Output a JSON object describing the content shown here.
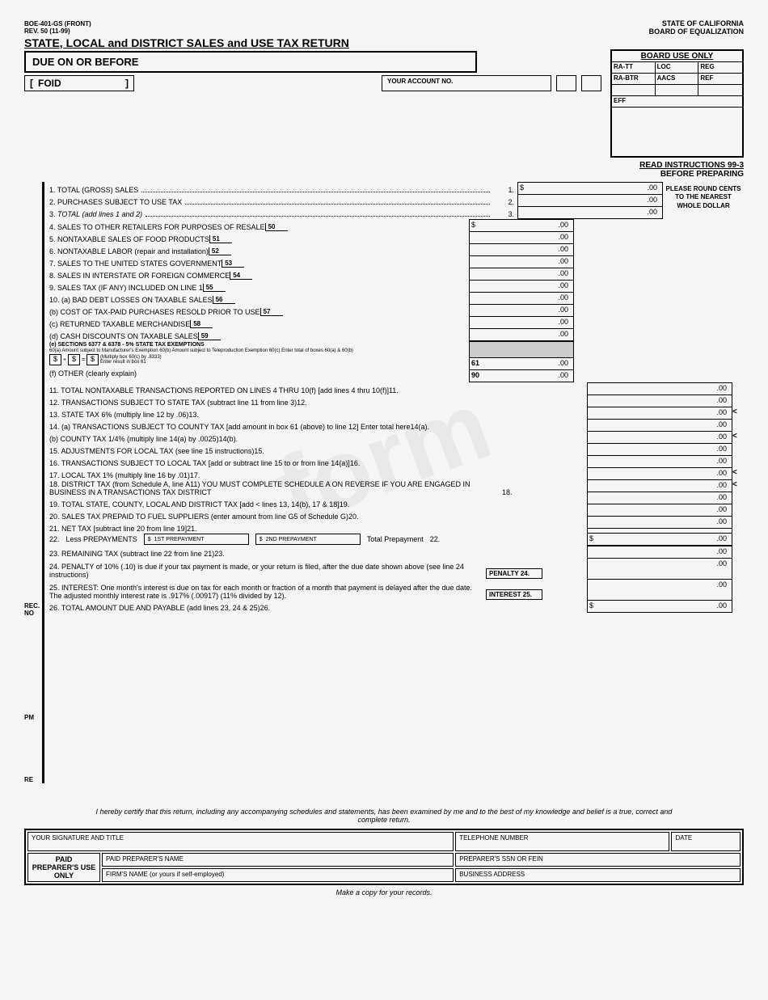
{
  "header": {
    "form_code": "BOE-401-GS (FRONT)",
    "rev": "REV. 50 (11-99)",
    "title": "STATE, LOCAL and DISTRICT SALES and USE TAX RETURN",
    "state": "STATE OF CALIFORNIA",
    "board": "BOARD OF EQUALIZATION",
    "due": "DUE ON OR BEFORE",
    "foid": "FOID",
    "acct": "YOUR ACCOUNT NO."
  },
  "board_use": {
    "title": "BOARD USE ONLY",
    "c1": "RA-TT",
    "c2": "LOC",
    "c3": "REG",
    "c4": "RA-BTR",
    "c5": "AACS",
    "c6": "REF",
    "eff": "EFF"
  },
  "instr": {
    "l1": "READ INSTRUCTIONS 99-3",
    "l2": "BEFORE PREPARING"
  },
  "round": "PLEASE ROUND CENTS TO THE NEAREST WHOLE DOLLAR",
  "side": {
    "rec": "REC.",
    "no": "NO",
    "pm": "PM",
    "re": "RE"
  },
  "lines_top": [
    {
      "n": "1.",
      "lbl": "TOTAL (GROSS) SALES",
      "end": "1.",
      "amt": ".00",
      "sym": "$"
    },
    {
      "n": "2.",
      "lbl": "PURCHASES SUBJECT TO USE TAX",
      "end": "2.",
      "amt": ".00"
    },
    {
      "n": "3.",
      "lbl": "TOTAL (add lines 1 and 2)",
      "end": "3.",
      "amt": ".00",
      "ital": true
    }
  ],
  "lines_mid": [
    {
      "n": "4.",
      "lbl": "SALES TO OTHER RETAILERS FOR PURPOSES OF RESALE",
      "box": "50",
      "amt": ".00",
      "sym": "$"
    },
    {
      "n": "5.",
      "lbl": "NONTAXABLE SALES OF FOOD PRODUCTS",
      "box": "51",
      "amt": ".00"
    },
    {
      "n": "6.",
      "lbl": "NONTAXABLE LABOR (repair and installation)",
      "box": "52",
      "amt": ".00"
    },
    {
      "n": "7.",
      "lbl": "SALES TO THE UNITED STATES GOVERNMENT",
      "box": "53",
      "amt": ".00"
    },
    {
      "n": "8.",
      "lbl": "SALES IN INTERSTATE OR FOREIGN COMMERCE",
      "box": "54",
      "amt": ".00"
    },
    {
      "n": "9.",
      "lbl": "SALES TAX (IF ANY) INCLUDED ON LINE 1",
      "box": "55",
      "amt": ".00"
    },
    {
      "n": "10.",
      "lbl": "(a) BAD DEBT LOSSES ON TAXABLE SALES",
      "box": "56",
      "amt": ".00"
    },
    {
      "n": "",
      "lbl": "(b) COST OF TAX-PAID PURCHASES RESOLD PRIOR TO USE",
      "box": "57",
      "amt": ".00"
    },
    {
      "n": "",
      "lbl": "(c) RETURNED TAXABLE MERCHANDISE",
      "box": "58",
      "amt": ".00"
    },
    {
      "n": "",
      "lbl": "(d) CASH DISCOUNTS ON TAXABLE SALES",
      "box": "59",
      "amt": ".00"
    }
  ],
  "sec_e": {
    "title": "(e) SECTIONS 6377 & 6378 - 5% STATE TAX EXEMPTIONS",
    "sub": "60(a) Amount subject to Manufacturer's Exemption   60(b) Amount subject to Teleproduction Exemption   60(c) Enter total of boxes 60(a) & 60(b)",
    "mult": "(Multiply box 60(c) by .8333) Enter result in box 61",
    "box61": "61",
    "amt61": ".00",
    "f": "(f) OTHER (clearly explain)",
    "box90": "90",
    "amt90": ".00"
  },
  "lines_bot": [
    {
      "n": "11.",
      "lbl": "TOTAL NONTAXABLE TRANSACTIONS REPORTED ON LINES 4 THRU 10(f) [add lines 4 thru 10(f)]",
      "end": "11.",
      "amt": ".00"
    },
    {
      "n": "12.",
      "lbl": "TRANSACTIONS SUBJECT TO STATE TAX (subtract line 11 from line 3)",
      "end": "12.",
      "amt": ".00"
    },
    {
      "n": "13.",
      "lbl": "STATE TAX 6% (multiply line 12 by .06)",
      "end": "13.",
      "amt": ".00",
      "lt": "<"
    },
    {
      "n": "14.",
      "lbl": "(a) TRANSACTIONS SUBJECT TO COUNTY TAX [add amount in box 61 (above) to line 12] Enter total here",
      "end": "14(a).",
      "amt": ".00"
    },
    {
      "n": "",
      "lbl": "(b) COUNTY TAX 1/4% (multiply line 14(a) by .0025)",
      "end": "14(b).",
      "amt": ".00",
      "lt": "<"
    },
    {
      "n": "15.",
      "lbl": "ADJUSTMENTS FOR LOCAL TAX (see line 15 instructions)",
      "end": "15.",
      "amt": ".00"
    },
    {
      "n": "16.",
      "lbl": "TRANSACTIONS SUBJECT TO LOCAL TAX [add or subtract line 15 to or from line 14(a)]",
      "end": "16.",
      "amt": ".00"
    },
    {
      "n": "17.",
      "lbl": "LOCAL TAX 1% (multiply line 16 by .01)",
      "end": "17.",
      "amt": ".00",
      "lt": "<"
    },
    {
      "n": "18.",
      "lbl": "DISTRICT TAX (from Schedule A, line A11) YOU MUST COMPLETE SCHEDULE A ON REVERSE IF YOU ARE ENGAGED IN BUSINESS IN A TRANSACTIONS TAX DISTRICT",
      "end": "18.",
      "amt": ".00",
      "lt": "<"
    },
    {
      "n": "19.",
      "lbl": "TOTAL STATE, COUNTY, LOCAL AND DISTRICT TAX [add < lines 13, 14(b), 17 & 18]",
      "end": "19.",
      "amt": ".00"
    },
    {
      "n": "20.",
      "lbl": "SALES TAX PREPAID TO FUEL SUPPLIERS (enter amount from line G5 of Schedule G)",
      "end": "20.",
      "amt": ".00"
    },
    {
      "n": "21.",
      "lbl": "NET TAX [subtract line 20 from line 19]",
      "end": "21.",
      "amt": ".00"
    }
  ],
  "prepay": {
    "n": "22.",
    "lbl": "Less PREPAYMENTS",
    "p1": "1ST PREPAYMENT",
    "p2": "2ND PREPAYMENT",
    "tot": "Total Prepayment",
    "end": "22.",
    "amt": ".00",
    "sym": "$"
  },
  "lines_end": [
    {
      "n": "23.",
      "lbl": "REMAINING TAX (subtract line 22 from line 21)",
      "end": "23.",
      "amt": ".00"
    },
    {
      "n": "24.",
      "lbl": "PENALTY of 10% (.10) is due if your tax payment is made, or your return is filed, after the due date shown above (see line 24 instructions)",
      "box": "PENALTY 24.",
      "amt": ".00"
    },
    {
      "n": "25.",
      "lbl": "INTEREST: One month's interest is due on tax for each month or fraction of a month that payment is delayed after the due date. The adjusted monthly interest rate is .917% (.00917) (11% divided by 12).",
      "box": "INTEREST 25.",
      "amt": ".00"
    },
    {
      "n": "26.",
      "lbl": "TOTAL AMOUNT DUE AND PAYABLE (add lines 23, 24 & 25)",
      "end": "26.",
      "amt": ".00",
      "sym": "$"
    }
  ],
  "cert": "I hereby certify that this return, including any accompanying schedules and statements, has been examined by me and to the best of my knowledge and belief is a true, correct and complete return.",
  "sig": {
    "r1a": "YOUR SIGNATURE AND TITLE",
    "r1b": "TELEPHONE NUMBER",
    "r1c": "DATE",
    "paid": "PAID PREPARER'S USE ONLY",
    "r2a": "PAID PREPARER'S NAME",
    "r2b": "PREPARER'S SSN OR FEIN",
    "r3a": "FIRM'S NAME (or yours if self-employed)",
    "r3b": "BUSINESS ADDRESS"
  },
  "copy": "Make a copy for your records."
}
